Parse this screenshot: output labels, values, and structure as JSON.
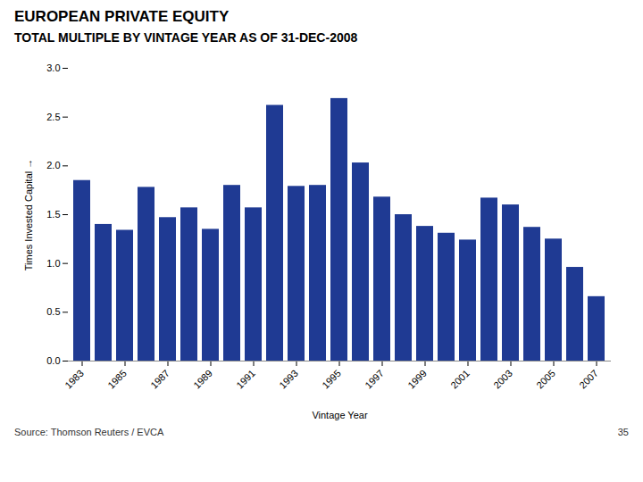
{
  "chart_data": {
    "type": "bar",
    "title": "EUROPEAN PRIVATE EQUITY",
    "subtitle": "TOTAL MULTIPLE BY VINTAGE YEAR AS OF 31-DEC-2008",
    "xlabel": "Vintage Year",
    "ylabel": "Times Invested Capital",
    "categories": [
      "1983",
      null,
      "1985",
      null,
      "1987",
      null,
      "1989",
      null,
      "1991",
      null,
      "1993",
      null,
      "1995",
      null,
      "1997",
      null,
      "1999",
      null,
      "2001",
      null,
      "2003",
      null,
      "2005",
      null,
      "2007"
    ],
    "values": [
      1.85,
      1.4,
      1.34,
      1.78,
      1.47,
      1.57,
      1.35,
      1.8,
      1.57,
      2.62,
      1.79,
      1.8,
      2.69,
      2.03,
      1.68,
      1.5,
      1.38,
      1.31,
      1.24,
      1.67,
      1.6,
      1.37,
      1.25,
      0.96,
      0.66
    ],
    "color": "#1F3A93",
    "ylim": [
      0.0,
      3.0
    ],
    "yticks": [
      {
        "value": 0,
        "label": "0.0"
      },
      0.5,
      {
        "value": 1,
        "label": "1.0"
      },
      1.5,
      {
        "value": 2,
        "label": "2.0"
      },
      2.5,
      {
        "value": 3,
        "label": "3.0"
      }
    ],
    "grid": false,
    "annotations": [
      "Source: Thomson Reuters / EVCA",
      "35"
    ]
  }
}
